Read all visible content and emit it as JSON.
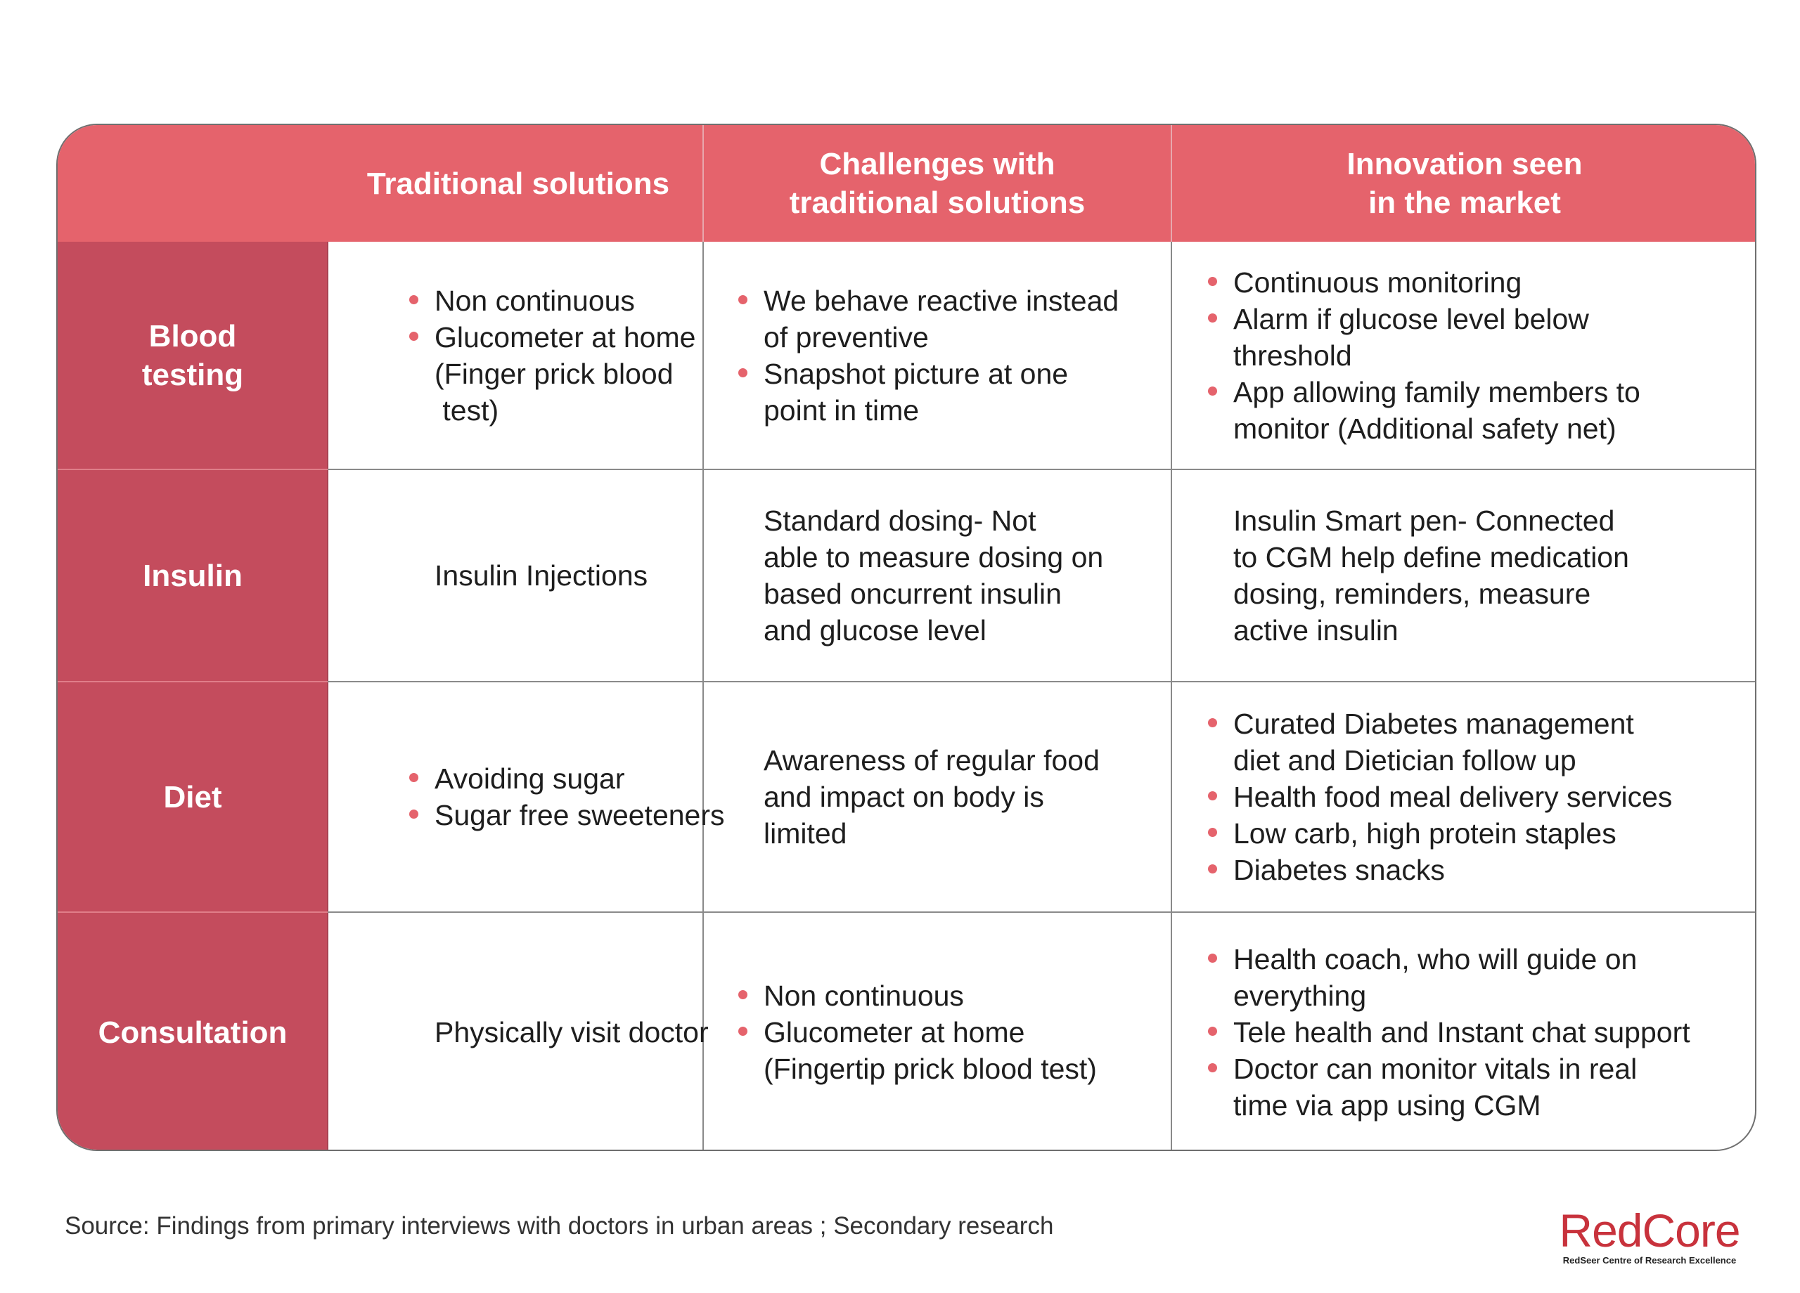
{
  "columns": {
    "traditional": "Traditional solutions",
    "challenges": [
      "Challenges with",
      "traditional solutions"
    ],
    "innovation": [
      "Innovation seen",
      "in the market"
    ]
  },
  "rows": [
    {
      "label": [
        "Blood",
        "testing"
      ],
      "traditional": [
        {
          "bullet": true,
          "text": "Non continuous"
        },
        {
          "bullet": true,
          "text": "Glucometer at home"
        },
        {
          "bullet": false,
          "text": "(Finger prick blood"
        },
        {
          "bullet": false,
          "text": " test)"
        }
      ],
      "challenges": [
        {
          "bullet": true,
          "text": "We behave reactive instead"
        },
        {
          "bullet": false,
          "text": "of preventive"
        },
        {
          "bullet": true,
          "text": "Snapshot picture at one"
        },
        {
          "bullet": false,
          "text": "point in time"
        }
      ],
      "innovation": [
        {
          "bullet": true,
          "text": "Continuous monitoring"
        },
        {
          "bullet": true,
          "text": "Alarm if glucose level below"
        },
        {
          "bullet": false,
          "text": "threshold"
        },
        {
          "bullet": true,
          "text": "App allowing family members to"
        },
        {
          "bullet": false,
          "text": "monitor (Additional safety net)"
        }
      ]
    },
    {
      "label": [
        "Insulin"
      ],
      "traditional": [
        {
          "bullet": false,
          "text": "Insulin Injections"
        }
      ],
      "challenges": [
        {
          "bullet": false,
          "text": "Standard dosing- Not"
        },
        {
          "bullet": false,
          "text": "able to measure dosing on"
        },
        {
          "bullet": false,
          "text": "based oncurrent insulin"
        },
        {
          "bullet": false,
          "text": "and glucose level"
        }
      ],
      "innovation": [
        {
          "bullet": false,
          "text": "Insulin Smart pen- Connected"
        },
        {
          "bullet": false,
          "text": "to CGM help define medication"
        },
        {
          "bullet": false,
          "text": "dosing, reminders, measure"
        },
        {
          "bullet": false,
          "text": "active insulin"
        }
      ]
    },
    {
      "label": [
        "Diet"
      ],
      "traditional": [
        {
          "bullet": true,
          "text": "Avoiding sugar"
        },
        {
          "bullet": true,
          "text": "Sugar free sweeteners"
        }
      ],
      "challenges": [
        {
          "bullet": false,
          "text": "Awareness of regular food"
        },
        {
          "bullet": false,
          "text": "and impact on body is"
        },
        {
          "bullet": false,
          "text": "limited"
        }
      ],
      "innovation": [
        {
          "bullet": true,
          "text": "Curated Diabetes management"
        },
        {
          "bullet": false,
          "text": "diet and Dietician follow up"
        },
        {
          "bullet": true,
          "text": "Health food meal delivery services"
        },
        {
          "bullet": true,
          "text": "Low carb, high protein staples"
        },
        {
          "bullet": true,
          "text": "Diabetes snacks"
        }
      ]
    },
    {
      "label": [
        "Consultation"
      ],
      "traditional": [
        {
          "bullet": false,
          "text": "Physically visit doctor"
        }
      ],
      "challenges": [
        {
          "bullet": true,
          "text": "Non continuous"
        },
        {
          "bullet": true,
          "text": "Glucometer at home"
        },
        {
          "bullet": false,
          "text": "(Fingertip prick blood test)"
        }
      ],
      "innovation": [
        {
          "bullet": true,
          "text": "Health coach, who will guide on"
        },
        {
          "bullet": false,
          "text": "everything"
        },
        {
          "bullet": true,
          "text": "Tele health and Instant chat support"
        },
        {
          "bullet": true,
          "text": "Doctor can monitor vitals in real"
        },
        {
          "bullet": false,
          "text": "time via app using CGM"
        }
      ]
    }
  ],
  "source": "Source: Findings from primary interviews with doctors in urban areas ; Secondary research",
  "logo": {
    "word": "RedCore",
    "subtitle": "RedSeer Centre of Research Excellence"
  },
  "colors": {
    "header": "#e5636c",
    "row_label": "#c44c5d",
    "bullet": "#e5636c",
    "logo": "#c8323c"
  }
}
